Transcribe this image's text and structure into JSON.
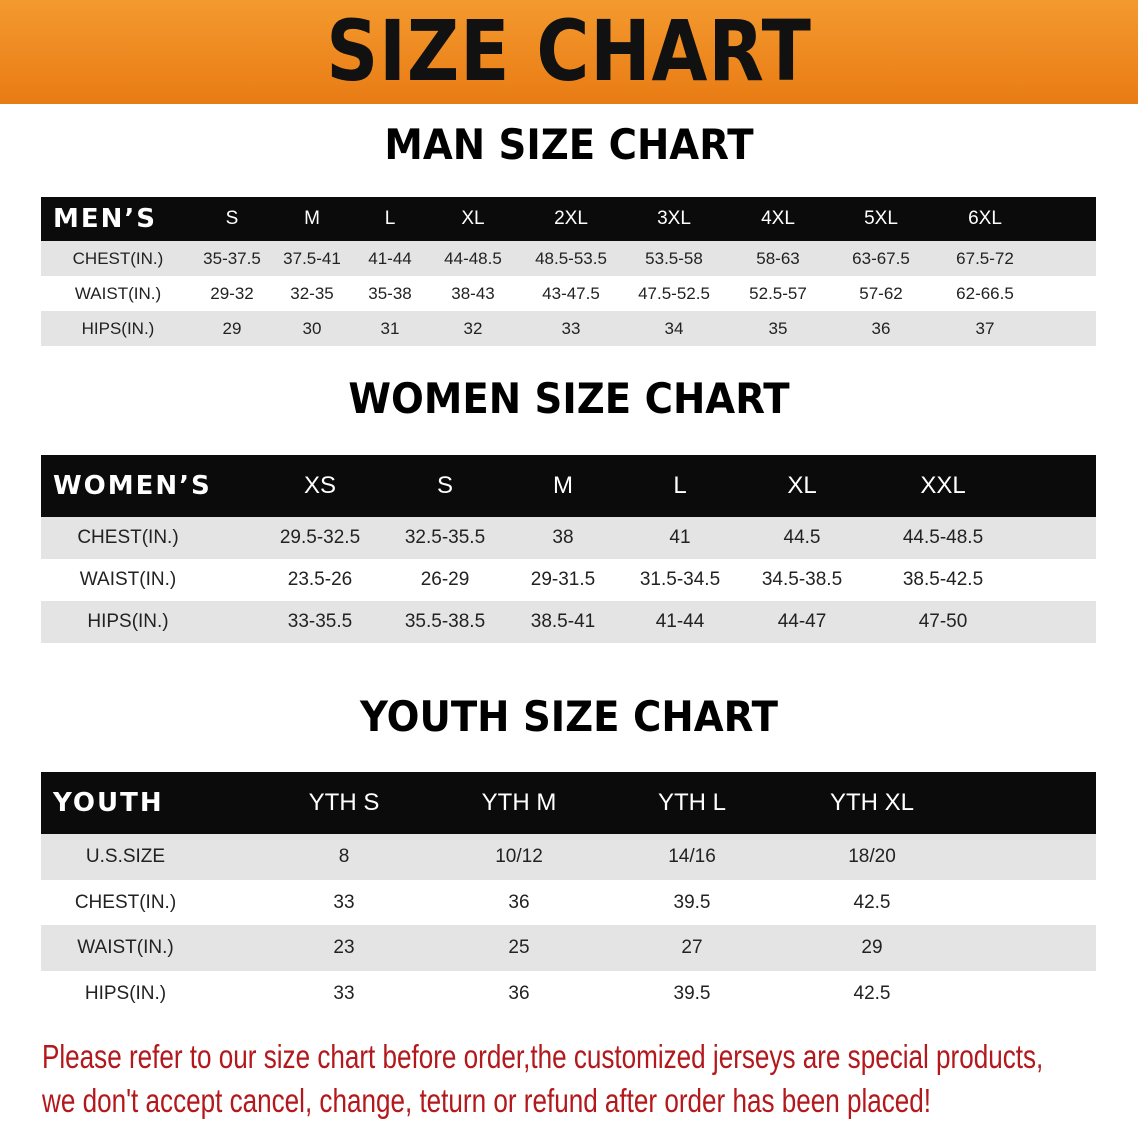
{
  "banner": {
    "title": "SIZE CHART",
    "color": "#ee8a20"
  },
  "men": {
    "heading": "MAN SIZE CHART",
    "header": [
      "MEN’S",
      "S",
      "M",
      "L",
      "XL",
      "2XL",
      "3XL",
      "4XL",
      "5XL",
      "6XL"
    ],
    "rows": [
      [
        "CHEST(IN.)",
        "35-37.5",
        "37.5-41",
        "41-44",
        "44-48.5",
        "48.5-53.5",
        "53.5-58",
        "58-63",
        "63-67.5",
        "67.5-72"
      ],
      [
        "WAIST(IN.)",
        "29-32",
        "32-35",
        "35-38",
        "38-43",
        "43-47.5",
        "47.5-52.5",
        "52.5-57",
        "57-62",
        "62-66.5"
      ],
      [
        "HIPS(IN.)",
        "29",
        "30",
        "31",
        "32",
        "33",
        "34",
        "35",
        "36",
        "37"
      ]
    ]
  },
  "women": {
    "heading": "WOMEN SIZE CHART",
    "header": [
      "WOMEN’S",
      "XS",
      "S",
      "M",
      "L",
      "XL",
      "XXL"
    ],
    "rows": [
      [
        "CHEST(IN.)",
        "29.5-32.5",
        "32.5-35.5",
        "38",
        "41",
        "44.5",
        "44.5-48.5"
      ],
      [
        "WAIST(IN.)",
        "23.5-26",
        "26-29",
        "29-31.5",
        "31.5-34.5",
        "34.5-38.5",
        "38.5-42.5"
      ],
      [
        "HIPS(IN.)",
        "33-35.5",
        "35.5-38.5",
        "38.5-41",
        "41-44",
        "44-47",
        "47-50"
      ]
    ]
  },
  "youth": {
    "heading": "YOUTH SIZE CHART",
    "header": [
      "YOUTH",
      "YTH S",
      "YTH M",
      "YTH L",
      "YTH XL"
    ],
    "rows": [
      [
        "U.S.SIZE",
        "8",
        "10/12",
        "14/16",
        "18/20"
      ],
      [
        "CHEST(IN.)",
        "33",
        "36",
        "39.5",
        "42.5"
      ],
      [
        "WAIST(IN.)",
        "23",
        "25",
        "27",
        "29"
      ],
      [
        "HIPS(IN.)",
        "33",
        "36",
        "39.5",
        "42.5"
      ]
    ]
  },
  "footer": {
    "line1": "Please refer to our size chart before order,the customized jerseys are special products,",
    "line2": "we don't accept cancel, change, teturn or refund after order has been placed!",
    "color": "#b3181c"
  }
}
